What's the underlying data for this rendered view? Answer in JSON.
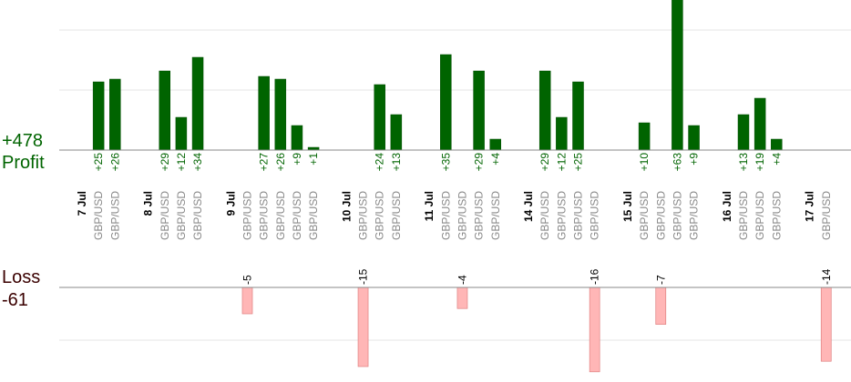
{
  "summary": {
    "profit_total": "+478",
    "profit_label": "Profit",
    "loss_label": "Loss",
    "loss_total": "-61"
  },
  "colors": {
    "profit_bar": "#006400",
    "profit_bar_edge": "#004d00",
    "profit_text": "#006400",
    "loss_bar": "#ffb6b6",
    "loss_bar_edge": "#e08080",
    "instrument_text": "#888888",
    "date_text": "#000000",
    "axis": "#888888",
    "grid": "#e6e6e6",
    "loss_title": "#3a0000"
  },
  "chart_data": {
    "type": "bar",
    "profit_axis_max": 55,
    "loss_axis_min": -20,
    "columns": [
      {
        "date": "7 Jul"
      },
      {
        "instrument": "GBP/USD",
        "value": 25,
        "label": "+25"
      },
      {
        "instrument": "GBP/USD",
        "value": 26,
        "label": "+26"
      },
      {
        "date": ""
      },
      {
        "date": "8 Jul"
      },
      {
        "instrument": "GBP/USD",
        "value": 29,
        "label": "+29"
      },
      {
        "instrument": "GBP/USD",
        "value": 12,
        "label": "+12"
      },
      {
        "instrument": "GBP/USD",
        "value": 34,
        "label": "+34"
      },
      {
        "date": ""
      },
      {
        "date": "9 Jul"
      },
      {
        "instrument": "GBP/USD",
        "value": -5,
        "label": "-5"
      },
      {
        "instrument": "GBP/USD",
        "value": 27,
        "label": "+27"
      },
      {
        "instrument": "GBP/USD",
        "value": 26,
        "label": "+26"
      },
      {
        "instrument": "GBP/USD",
        "value": 9,
        "label": "+9"
      },
      {
        "instrument": "GBP/USD",
        "value": 1,
        "label": "+1"
      },
      {
        "date": ""
      },
      {
        "date": "10 Jul"
      },
      {
        "instrument": "GBP/USD",
        "value": -15,
        "label": "-15"
      },
      {
        "instrument": "GBP/USD",
        "value": 24,
        "label": "+24"
      },
      {
        "instrument": "GBP/USD",
        "value": 13,
        "label": "+13"
      },
      {
        "date": ""
      },
      {
        "date": "11 Jul"
      },
      {
        "instrument": "GBP/USD",
        "value": 35,
        "label": "+35"
      },
      {
        "instrument": "GBP/USD",
        "value": -4,
        "label": "-4"
      },
      {
        "instrument": "GBP/USD",
        "value": 29,
        "label": "+29"
      },
      {
        "instrument": "GBP/USD",
        "value": 4,
        "label": "+4"
      },
      {
        "date": ""
      },
      {
        "date": "14 Jul"
      },
      {
        "instrument": "GBP/USD",
        "value": 29,
        "label": "+29"
      },
      {
        "instrument": "GBP/USD",
        "value": 12,
        "label": "+12"
      },
      {
        "instrument": "GBP/USD",
        "value": 25,
        "label": "+25"
      },
      {
        "instrument": "GBP/USD",
        "value": -16,
        "label": "-16"
      },
      {
        "date": ""
      },
      {
        "date": "15 Jul"
      },
      {
        "instrument": "GBP/USD",
        "value": 10,
        "label": "+10"
      },
      {
        "instrument": "GBP/USD",
        "value": -7,
        "label": "-7"
      },
      {
        "instrument": "GBP/USD",
        "value": 63,
        "label": "+63"
      },
      {
        "instrument": "GBP/USD",
        "value": 9,
        "label": "+9"
      },
      {
        "date": ""
      },
      {
        "date": "16 Jul"
      },
      {
        "instrument": "GBP/USD",
        "value": 13,
        "label": "+13"
      },
      {
        "instrument": "GBP/USD",
        "value": 19,
        "label": "+19"
      },
      {
        "instrument": "GBP/USD",
        "value": 4,
        "label": "+4"
      },
      {
        "date": ""
      },
      {
        "date": "17 Jul"
      },
      {
        "instrument": "GBP/USD",
        "value": -14,
        "label": "-14"
      }
    ]
  }
}
